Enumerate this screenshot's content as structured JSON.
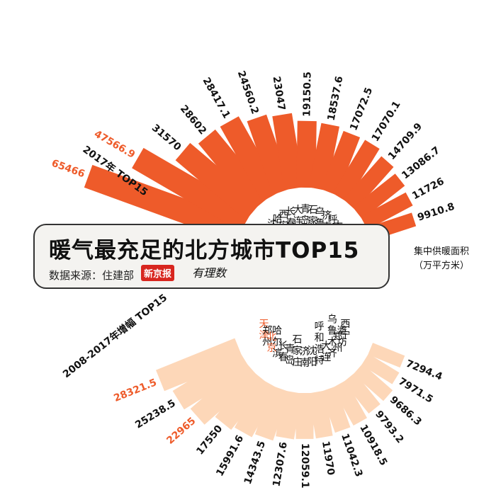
{
  "title": "暖气最充足的北方城市TOP15",
  "source": "数据来源：住建部",
  "logo": {
    "badge": "新京报",
    "script": "有理数"
  },
  "unit": {
    "line1": "集中供暖面积",
    "line2": "（万平方米）"
  },
  "colors": {
    "top_bar": "#ee5b2a",
    "top_label": "#ee5b2a",
    "bottom_bar": "#fdd7b8",
    "bottom_label": "#ee5b2a",
    "text": "#111111"
  },
  "chart_data": [
    {
      "type": "bar",
      "layout": "radial-fan",
      "title": "2017年 TOP15",
      "categories": [
        "北京",
        "天津",
        "沈阳",
        "哈尔滨",
        "西安",
        "长春",
        "大连",
        "青岛",
        "石家庄",
        "乌鲁木齐",
        "济南",
        "呼和浩特",
        "太原",
        "郑州",
        "潍坊"
      ],
      "values": [
        65466,
        47566.9,
        31570,
        28602,
        28417.1,
        24560.2,
        23047,
        19150.5,
        18537.6,
        17072.5,
        17070.1,
        14709.9,
        13086.7,
        11726,
        9910.8
      ],
      "value_labels": [
        "65466",
        "47566.9",
        "31570",
        "28602",
        "28417.1",
        "24560.2",
        "23047",
        "19150.5",
        "18537.6",
        "17072.5",
        "17070.1",
        "14709.9",
        "13086.7",
        "11726",
        "9910.8"
      ],
      "highlighted": [
        "北京",
        "天津"
      ]
    },
    {
      "type": "bar",
      "layout": "radial-fan",
      "title": "2008-2017年增幅 TOP15",
      "categories": [
        "天津",
        "郑州",
        "北京",
        "哈尔滨",
        "长春",
        "青岛",
        "石家庄",
        "济南",
        "沈阳",
        "呼和浩特",
        "大连",
        "乌鲁木齐",
        "郑州",
        "潍坊",
        "西宁"
      ],
      "values": [
        28321.5,
        25238.5,
        22965,
        17550,
        15991.6,
        14343.5,
        12307.6,
        12059.1,
        11970,
        11042.3,
        10918.5,
        9793.2,
        9686.3,
        7971.5,
        7294.4
      ],
      "value_labels": [
        "28321.5",
        "25238.5",
        "22965",
        "17550",
        "15991.6",
        "14343.5",
        "12307.6",
        "12059.1",
        "11970",
        "11042.3",
        "10918.5",
        "9793.2",
        "9686.3",
        "7971.5",
        "7294.4"
      ],
      "highlighted": [
        "天津",
        "北京"
      ]
    }
  ]
}
